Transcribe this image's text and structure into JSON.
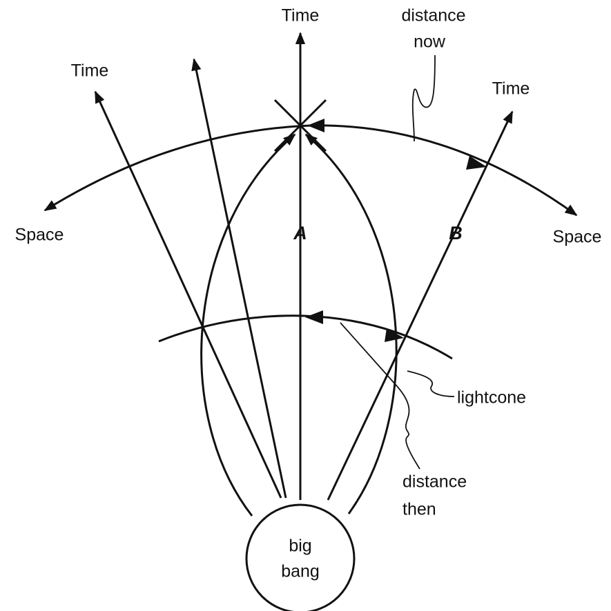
{
  "labels": {
    "time_center": "Time",
    "time_left": "Time",
    "time_right": "Time",
    "distance_now": [
      "distance",
      "now"
    ],
    "space_left": "Space",
    "space_right": "Space",
    "worldline_a": "A",
    "worldline_b": "B",
    "lightcone": "lightcone",
    "distance_then": [
      "distance",
      "then"
    ],
    "big_bang": [
      "big",
      "bang"
    ]
  }
}
